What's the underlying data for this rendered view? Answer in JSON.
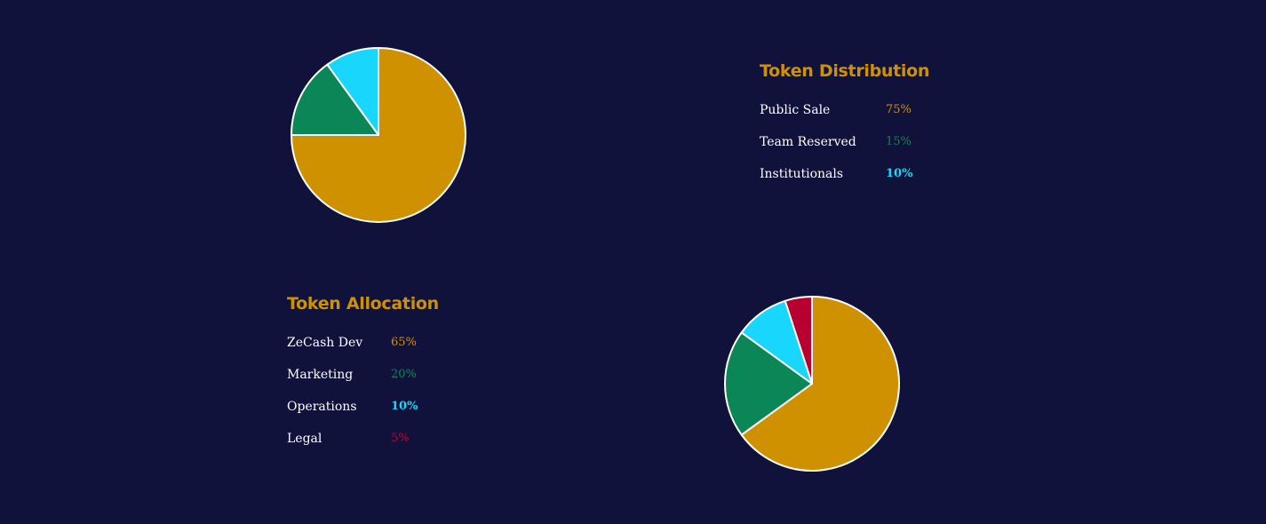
{
  "colors": {
    "background": "#11123c",
    "heading": "#d09100",
    "gold": "#cf9100",
    "green": "#0b8656",
    "cyan": "#19d6fc",
    "red": "#b7002f",
    "label": "#ffffff",
    "slice_stroke": "#ffffff"
  },
  "chart_data": [
    {
      "type": "pie",
      "title": "Token Distribution",
      "categories": [
        "Public Sale",
        "Team Reserved",
        "Institutionals"
      ],
      "values": [
        75,
        15,
        10
      ],
      "value_labels": [
        "75%",
        "15%",
        "10%"
      ],
      "colors": [
        "#cf9100",
        "#0b8656",
        "#19d6fc"
      ],
      "legend_placement": "right"
    },
    {
      "type": "pie",
      "title": "Token Allocation",
      "categories": [
        "ZeCash Dev",
        "Marketing",
        "Operations",
        "Legal"
      ],
      "values": [
        65,
        20,
        10,
        5
      ],
      "value_labels": [
        "65%",
        "20%",
        "10%",
        "5%"
      ],
      "colors": [
        "#cf9100",
        "#0b8656",
        "#19d6fc",
        "#b7002f"
      ],
      "legend_placement": "left"
    }
  ]
}
